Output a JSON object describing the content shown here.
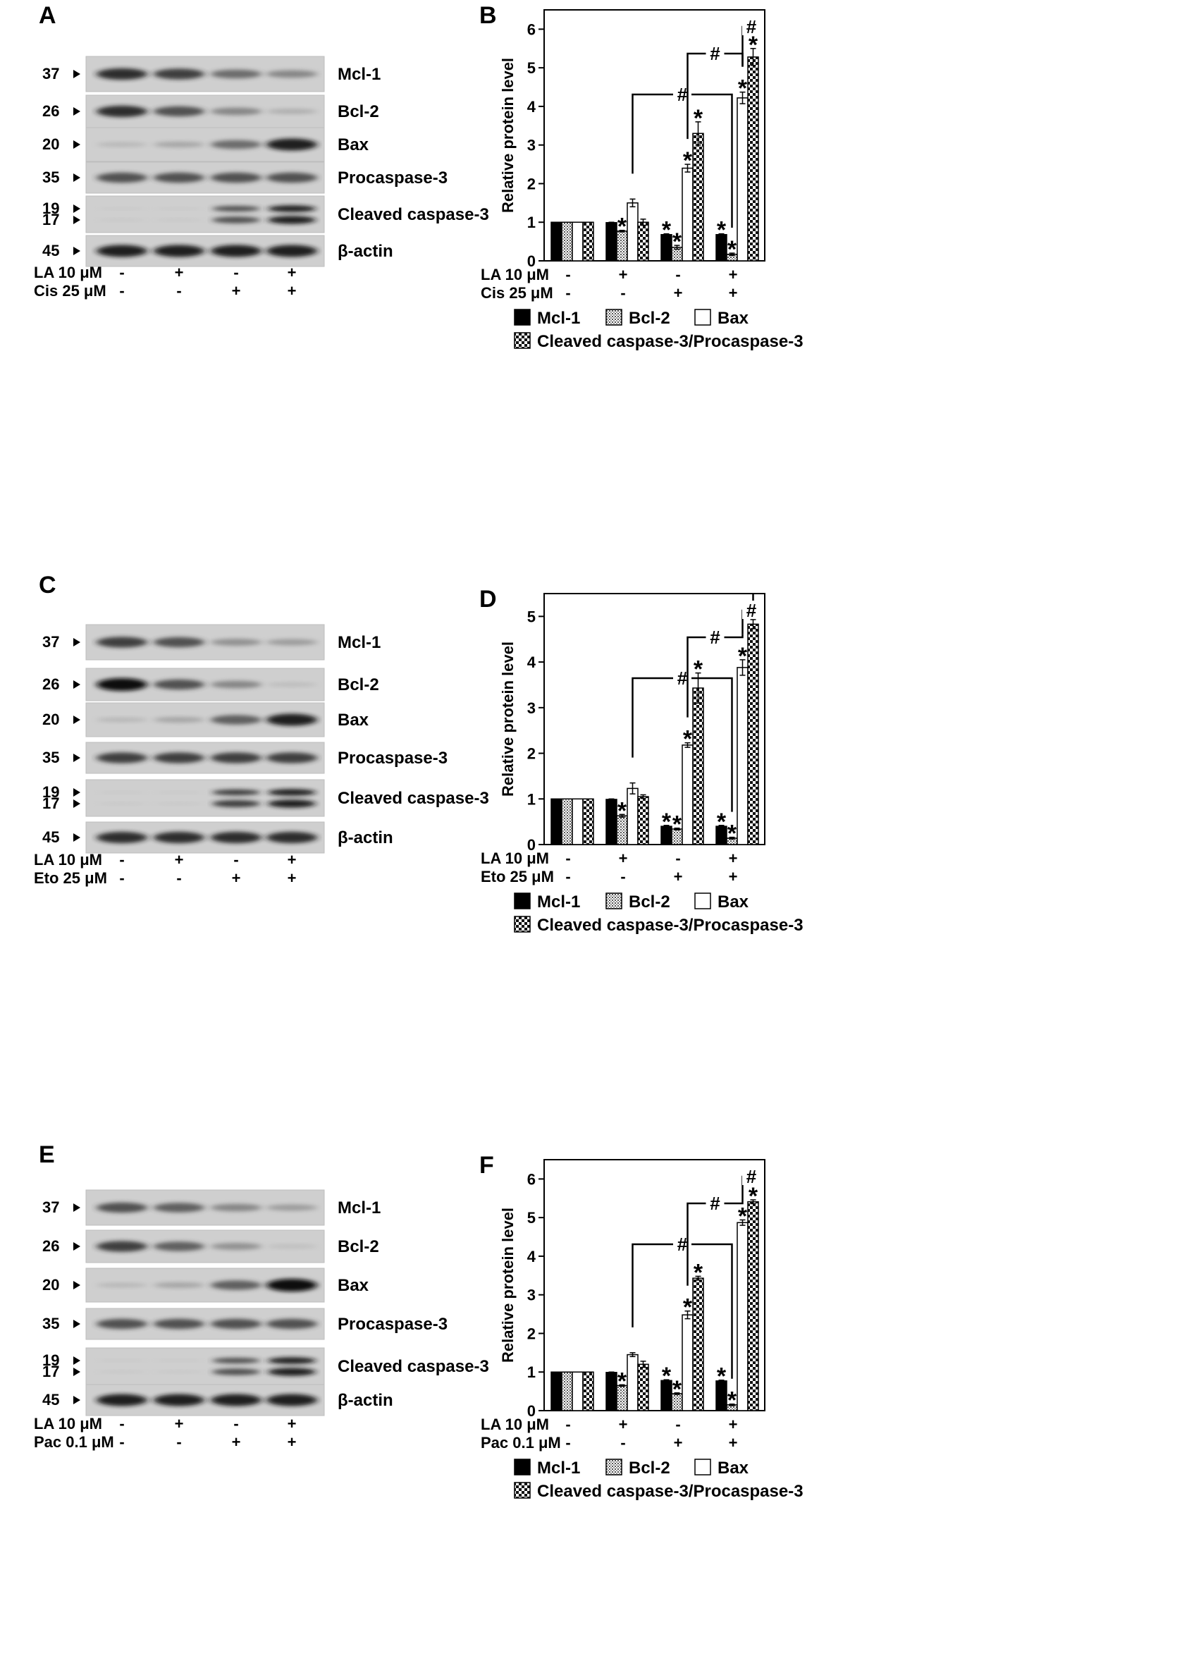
{
  "figure": {
    "panels": [
      {
        "blot": {
          "letter": "A",
          "lanes": 4,
          "rows": [
            {
              "mw": "37",
              "label": "Mcl-1",
              "intensity": [
                0.9,
                0.85,
                0.7,
                0.6
              ]
            },
            {
              "mw": "26",
              "label": "Bcl-2",
              "intensity": [
                0.9,
                0.8,
                0.6,
                0.4
              ]
            },
            {
              "mw": "20",
              "label": "Bax",
              "intensity": [
                0.35,
                0.45,
                0.7,
                0.95
              ]
            },
            {
              "mw": "35",
              "label": "Procaspase-3",
              "intensity": [
                0.8,
                0.8,
                0.8,
                0.8
              ]
            },
            {
              "mw": [
                "19",
                "17"
              ],
              "label": "Cleaved caspase-3",
              "double": true,
              "intensity": [
                0.15,
                0.15,
                0.8,
                0.95
              ]
            },
            {
              "mw": "45",
              "label": "β-actin",
              "intensity": [
                0.95,
                0.95,
                0.95,
                0.95
              ]
            }
          ],
          "treatments": [
            {
              "label": "LA 10 μM",
              "marks": [
                "-",
                "+",
                "-",
                "+"
              ]
            },
            {
              "label": "Cis 25 μM",
              "marks": [
                "-",
                "-",
                "+",
                "+"
              ]
            }
          ]
        },
        "chart_data": {
          "letter": "B",
          "type": "bar",
          "ylabel": "Relative protein level",
          "ylim": [
            0,
            6.5
          ],
          "yticks": [
            0,
            1,
            2,
            3,
            4,
            5,
            6
          ],
          "series": [
            {
              "name": "Mcl-1",
              "pattern": "solid",
              "values": [
                1.0,
                0.99,
                0.68,
                0.68
              ],
              "errors": [
                0,
                0.01,
                0.02,
                0.02
              ],
              "stars": [
                false,
                false,
                true,
                true
              ]
            },
            {
              "name": "Bcl-2",
              "pattern": "dots",
              "values": [
                1.0,
                0.77,
                0.35,
                0.17
              ],
              "errors": [
                0,
                0.02,
                0.05,
                0.03
              ],
              "stars": [
                false,
                true,
                true,
                true
              ]
            },
            {
              "name": "Bax",
              "pattern": "open",
              "values": [
                1.0,
                1.5,
                2.4,
                4.22
              ],
              "errors": [
                0,
                0.1,
                0.1,
                0.15
              ],
              "stars": [
                false,
                false,
                true,
                true
              ]
            },
            {
              "name": "Cleaved caspase-3/Procaspase-3",
              "pattern": "checker",
              "values": [
                1.0,
                1.0,
                3.3,
                5.28
              ],
              "errors": [
                0,
                0.08,
                0.3,
                0.22
              ],
              "stars": [
                false,
                false,
                true,
                true
              ]
            }
          ],
          "treatments": [
            {
              "label": "LA 10 μM",
              "marks": [
                "-",
                "+",
                "-",
                "+"
              ]
            },
            {
              "label": "Cis 25 μM",
              "marks": [
                "-",
                "-",
                "+",
                "+"
              ]
            }
          ],
          "brackets": [
            {
              "from": [
                1,
                2
              ],
              "to": [
                3,
                1
              ],
              "symbol": "#"
            },
            {
              "from": [
                2,
                2
              ],
              "to": [
                3,
                2
              ],
              "symbol": "#"
            },
            {
              "from": [
                3,
                2
              ],
              "to": [
                3,
                3
              ],
              "symbol": "#"
            }
          ]
        }
      },
      {
        "blot": {
          "letter": "C",
          "lanes": 4,
          "rows": [
            {
              "mw": "37",
              "label": "Mcl-1",
              "intensity": [
                0.85,
                0.8,
                0.55,
                0.5
              ]
            },
            {
              "mw": "26",
              "label": "Bcl-2",
              "intensity": [
                1.0,
                0.8,
                0.6,
                0.3
              ]
            },
            {
              "mw": "20",
              "label": "Bax",
              "intensity": [
                0.35,
                0.45,
                0.75,
                0.95
              ]
            },
            {
              "mw": "35",
              "label": "Procaspase-3",
              "intensity": [
                0.85,
                0.85,
                0.85,
                0.85
              ]
            },
            {
              "mw": [
                "19",
                "17"
              ],
              "label": "Cleaved caspase-3",
              "double": true,
              "intensity": [
                0.15,
                0.15,
                0.85,
                0.95
              ]
            },
            {
              "mw": "45",
              "label": "β-actin",
              "intensity": [
                0.9,
                0.9,
                0.9,
                0.9
              ]
            }
          ],
          "treatments": [
            {
              "label": "LA 10 μM",
              "marks": [
                "-",
                "+",
                "-",
                "+"
              ]
            },
            {
              "label": "Eto 25 μM",
              "marks": [
                "-",
                "-",
                "+",
                "+"
              ]
            }
          ]
        },
        "chart_data": {
          "letter": "D",
          "type": "bar",
          "ylabel": "Relative protein level",
          "ylim": [
            0,
            5.5
          ],
          "yticks": [
            0,
            1,
            2,
            3,
            4,
            5
          ],
          "series": [
            {
              "name": "Mcl-1",
              "pattern": "solid",
              "values": [
                1.0,
                0.99,
                0.4,
                0.4
              ],
              "errors": [
                0,
                0.01,
                0.02,
                0.02
              ],
              "stars": [
                false,
                false,
                true,
                true
              ]
            },
            {
              "name": "Bcl-2",
              "pattern": "dots",
              "values": [
                1.0,
                0.63,
                0.34,
                0.14
              ],
              "errors": [
                0,
                0.03,
                0.02,
                0.02
              ],
              "stars": [
                false,
                true,
                true,
                true
              ]
            },
            {
              "name": "Bax",
              "pattern": "open",
              "values": [
                1.0,
                1.23,
                2.18,
                3.88
              ],
              "errors": [
                0,
                0.12,
                0.05,
                0.17
              ],
              "stars": [
                false,
                false,
                true,
                true
              ]
            },
            {
              "name": "Cleaved caspase-3/Procaspase-3",
              "pattern": "checker",
              "values": [
                1.0,
                1.05,
                3.43,
                4.83
              ],
              "errors": [
                0,
                0.04,
                0.33,
                0.1
              ],
              "stars": [
                false,
                false,
                true,
                true
              ]
            }
          ],
          "treatments": [
            {
              "label": "LA 10 μM",
              "marks": [
                "-",
                "+",
                "-",
                "+"
              ]
            },
            {
              "label": "Eto 25 μM",
              "marks": [
                "-",
                "-",
                "+",
                "+"
              ]
            }
          ],
          "brackets": [
            {
              "from": [
                1,
                2
              ],
              "to": [
                3,
                1
              ],
              "symbol": "#"
            },
            {
              "from": [
                2,
                2
              ],
              "to": [
                3,
                2
              ],
              "symbol": "#"
            },
            {
              "from": [
                3,
                2
              ],
              "to": [
                3,
                3
              ],
              "symbol": "#"
            }
          ]
        }
      },
      {
        "blot": {
          "letter": "E",
          "lanes": 4,
          "rows": [
            {
              "mw": "37",
              "label": "Mcl-1",
              "intensity": [
                0.8,
                0.75,
                0.6,
                0.5
              ]
            },
            {
              "mw": "26",
              "label": "Bcl-2",
              "intensity": [
                0.85,
                0.75,
                0.55,
                0.25
              ]
            },
            {
              "mw": "20",
              "label": "Bax",
              "intensity": [
                0.35,
                0.45,
                0.75,
                1.0
              ]
            },
            {
              "mw": "35",
              "label": "Procaspase-3",
              "intensity": [
                0.8,
                0.8,
                0.8,
                0.8
              ]
            },
            {
              "mw": [
                "19",
                "17"
              ],
              "label": "Cleaved caspase-3",
              "double": true,
              "intensity": [
                0.15,
                0.15,
                0.8,
                0.95
              ]
            },
            {
              "mw": "45",
              "label": "β-actin",
              "intensity": [
                0.95,
                0.95,
                0.95,
                0.95
              ]
            }
          ],
          "treatments": [
            {
              "label": "LA 10 μM",
              "marks": [
                "-",
                "+",
                "-",
                "+"
              ]
            },
            {
              "label": "Pac 0.1 μM",
              "marks": [
                "-",
                "-",
                "+",
                "+"
              ]
            }
          ]
        },
        "chart_data": {
          "letter": "F",
          "type": "bar",
          "ylabel": "Relative protein level",
          "ylim": [
            0,
            6.5
          ],
          "yticks": [
            0,
            1,
            2,
            3,
            4,
            5,
            6
          ],
          "series": [
            {
              "name": "Mcl-1",
              "pattern": "solid",
              "values": [
                1.0,
                0.99,
                0.78,
                0.77
              ],
              "errors": [
                0,
                0.01,
                0.02,
                0.02
              ],
              "stars": [
                false,
                false,
                true,
                true
              ]
            },
            {
              "name": "Bcl-2",
              "pattern": "dots",
              "values": [
                1.0,
                0.65,
                0.44,
                0.15
              ],
              "errors": [
                0,
                0.02,
                0.02,
                0.02
              ],
              "stars": [
                false,
                true,
                true,
                true
              ]
            },
            {
              "name": "Bax",
              "pattern": "open",
              "values": [
                1.0,
                1.45,
                2.48,
                4.87
              ],
              "errors": [
                0,
                0.05,
                0.1,
                0.07
              ],
              "stars": [
                false,
                false,
                true,
                true
              ]
            },
            {
              "name": "Cleaved caspase-3/Procaspase-3",
              "pattern": "checker",
              "values": [
                1.0,
                1.2,
                3.43,
                5.41
              ],
              "errors": [
                0,
                0.08,
                0.05,
                0.05
              ],
              "stars": [
                false,
                false,
                true,
                true
              ]
            }
          ],
          "treatments": [
            {
              "label": "LA 10 μM",
              "marks": [
                "-",
                "+",
                "-",
                "+"
              ]
            },
            {
              "label": "Pac 0.1 μM",
              "marks": [
                "-",
                "-",
                "+",
                "+"
              ]
            }
          ],
          "brackets": [
            {
              "from": [
                1,
                2
              ],
              "to": [
                3,
                1
              ],
              "symbol": "#"
            },
            {
              "from": [
                2,
                2
              ],
              "to": [
                3,
                2
              ],
              "symbol": "#"
            },
            {
              "from": [
                3,
                2
              ],
              "to": [
                3,
                3
              ],
              "symbol": "#"
            }
          ]
        }
      }
    ]
  },
  "chart_data": [
    {
      "panel": "B",
      "type": "bar",
      "ylabel": "Relative protein level",
      "ylim": [
        0,
        6.5
      ],
      "categories": [
        "LA -, Cis -",
        "LA +, Cis -",
        "LA -, Cis +",
        "LA +, Cis +"
      ],
      "series": [
        {
          "name": "Mcl-1",
          "values": [
            1.0,
            0.99,
            0.68,
            0.68
          ]
        },
        {
          "name": "Bcl-2",
          "values": [
            1.0,
            0.77,
            0.35,
            0.17
          ]
        },
        {
          "name": "Bax",
          "values": [
            1.0,
            1.5,
            2.4,
            4.22
          ]
        },
        {
          "name": "Cleaved caspase-3/Procaspase-3",
          "values": [
            1.0,
            1.0,
            3.3,
            5.28
          ]
        }
      ]
    },
    {
      "panel": "D",
      "type": "bar",
      "ylabel": "Relative protein level",
      "ylim": [
        0,
        5.5
      ],
      "categories": [
        "LA -, Eto -",
        "LA +, Eto -",
        "LA -, Eto +",
        "LA +, Eto +"
      ],
      "series": [
        {
          "name": "Mcl-1",
          "values": [
            1.0,
            0.99,
            0.4,
            0.4
          ]
        },
        {
          "name": "Bcl-2",
          "values": [
            1.0,
            0.63,
            0.34,
            0.14
          ]
        },
        {
          "name": "Bax",
          "values": [
            1.0,
            1.23,
            2.18,
            3.88
          ]
        },
        {
          "name": "Cleaved caspase-3/Procaspase-3",
          "values": [
            1.0,
            1.05,
            3.43,
            4.83
          ]
        }
      ]
    },
    {
      "panel": "F",
      "type": "bar",
      "ylabel": "Relative protein level",
      "ylim": [
        0,
        6.5
      ],
      "categories": [
        "LA -, Pac -",
        "LA +, Pac -",
        "LA -, Pac +",
        "LA +, Pac +"
      ],
      "series": [
        {
          "name": "Mcl-1",
          "values": [
            1.0,
            0.99,
            0.78,
            0.77
          ]
        },
        {
          "name": "Bcl-2",
          "values": [
            1.0,
            0.65,
            0.44,
            0.15
          ]
        },
        {
          "name": "Bax",
          "values": [
            1.0,
            1.45,
            2.48,
            4.87
          ]
        },
        {
          "name": "Cleaved caspase-3/Procaspase-3",
          "values": [
            1.0,
            1.2,
            3.43,
            5.41
          ]
        }
      ]
    }
  ]
}
